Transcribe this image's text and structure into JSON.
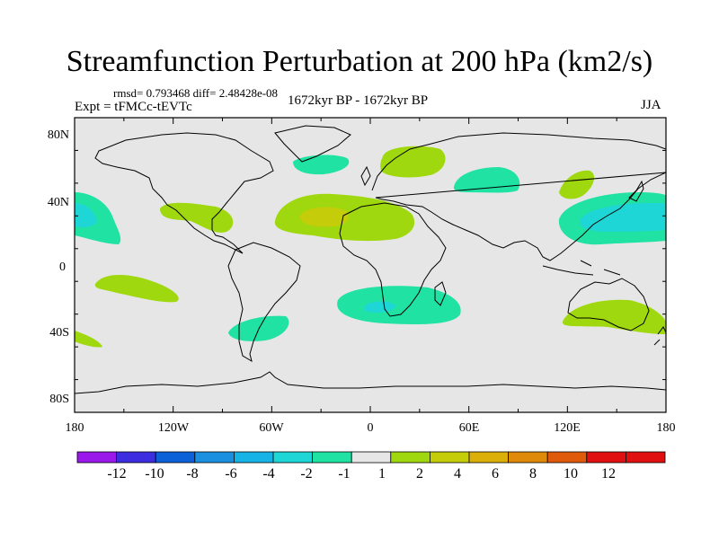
{
  "title": "Streamfunction Perturbation at 200 hPa (km2/s)",
  "stats": "rmsd= 0.793468 diff= 2.48428e-08",
  "expt": "Expt = tFMCc-tEVTc",
  "period": "1672kyr BP - 1672kyr BP",
  "season": "JJA",
  "axes": {
    "lat_labels": [
      "80N",
      "40N",
      "0",
      "40S",
      "80S"
    ],
    "lon_labels": [
      "180",
      "120W",
      "60W",
      "0",
      "60E",
      "120E",
      "180"
    ]
  },
  "colorbar": {
    "labels": [
      "-12",
      "-10",
      "-8",
      "-6",
      "-4",
      "-2",
      "-1",
      "1",
      "2",
      "4",
      "6",
      "8",
      "10",
      "12"
    ],
    "colors": [
      "#9a19ea",
      "#3c2de0",
      "#0c60d8",
      "#1b8fe0",
      "#16b4e6",
      "#1fd6d6",
      "#20e2a2",
      "#e6e6e6",
      "#9fd80e",
      "#c5cc0a",
      "#dcae08",
      "#e08a0a",
      "#e05a0c",
      "#e01010"
    ]
  },
  "colors": {
    "background": "#e6e6e6",
    "coast": "#000000"
  }
}
